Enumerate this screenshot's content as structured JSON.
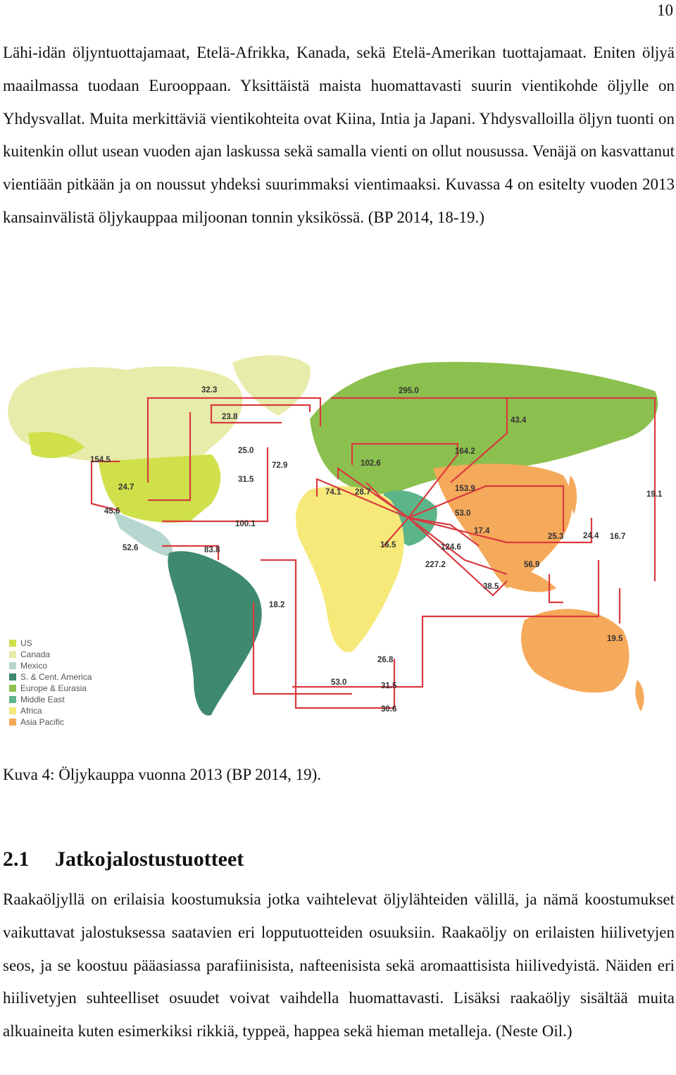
{
  "page_number": "10",
  "intro_paragraph": "Lähi-idän öljyntuottajamaat, Etelä-Afrikka, Kanada, sekä Etelä-Amerikan tuottajamaat. Eniten öljyä maailmassa tuodaan Eurooppaan. Yksittäistä maista huomattavasti suurin vientikohde öljylle on Yhdysvallat. Muita merkittäviä vientikohteita ovat Kiina, Intia ja Japani. Yhdysvalloilla öljyn tuonti on kuitenkin ollut usean vuoden ajan laskussa sekä samalla vienti on ollut nousussa. Venäjä on kasvattanut vientiään pitkään ja on noussut yhdeksi suurimmaksi vientimaaksi. Kuvassa 4 on esitelty vuoden 2013 kansainvälistä öljykauppaa miljoonan tonnin yksikössä. (BP 2014, 18-19.)",
  "figure": {
    "legend": [
      {
        "label": "US",
        "color": "#cfe04a"
      },
      {
        "label": "Canada",
        "color": "#e8ecaa"
      },
      {
        "label": "Mexico",
        "color": "#b6d6cf"
      },
      {
        "label": "S. & Cent. America",
        "color": "#3f8a6e"
      },
      {
        "label": "Europe & Eurasia",
        "color": "#8cc04e"
      },
      {
        "label": "Middle East",
        "color": "#5cb489"
      },
      {
        "label": "Africa",
        "color": "#f6e97a"
      },
      {
        "label": "Asia Pacific",
        "color": "#f5a95a"
      }
    ],
    "flow_labels": [
      "32.3",
      "295.0",
      "23.8",
      "43.4",
      "25.0",
      "164.2",
      "154.5",
      "72.9",
      "102.6",
      "31.5",
      "24.7",
      "74.1",
      "28.7",
      "153.9",
      "19.1",
      "45.6",
      "53.0",
      "100.1",
      "17.4",
      "25.3",
      "24.4",
      "16.7",
      "52.6",
      "83.8",
      "16.5",
      "124.6",
      "227.2",
      "56.9",
      "38.5",
      "18.2",
      "19.5",
      "26.8",
      "53.0",
      "31.5",
      "30.6"
    ],
    "flow_color": "#d93a3f"
  },
  "caption": "Kuva 4: Öljykauppa vuonna 2013 (BP 2014, 19).",
  "section": {
    "number": "2.1",
    "title": "Jatkojalostustuotteet"
  },
  "body_paragraph": "Raakaöljyllä on erilaisia koostumuksia jotka vaihtelevat öljylähteiden välillä, ja nämä koostumukset vaikuttavat jalostuksessa saatavien eri lopputuotteiden osuuksiin. Raakaöljy on erilaisten hiilivetyjen seos, ja se koostuu pääasiassa parafiinisista, nafteenisista sekä aromaattisista hiilivedyistä. Näiden eri hiilivetyjen suhteelliset osuudet voivat vaihdella huomattavasti. Lisäksi raakaöljy sisältää muita alkuaineita kuten esimerkiksi rikkiä, typpeä, happea sekä hieman metalleja. (Neste Oil.)"
}
